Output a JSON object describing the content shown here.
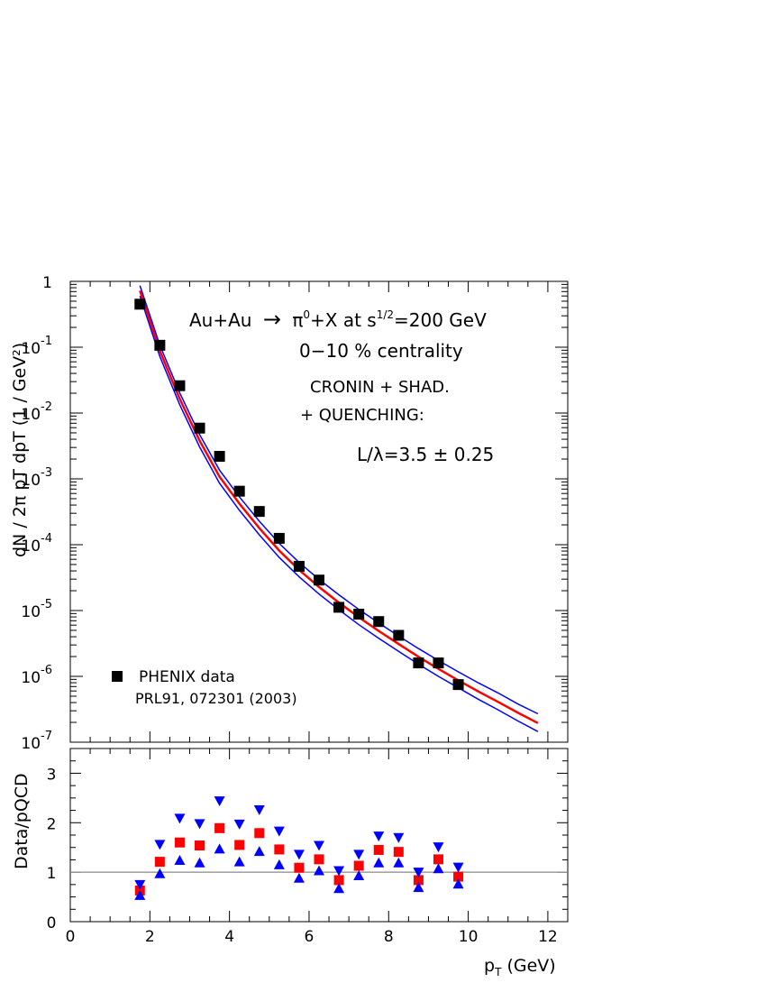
{
  "chart_data": [
    {
      "type": "scatter",
      "ylabel": "dN / 2π pT dpT (1 / GeV²)",
      "yscale": "log",
      "xlim": [
        0,
        12.5
      ],
      "ylim": [
        1e-07,
        1
      ],
      "y_tick_labels": [
        {
          "v": 1,
          "base": "1",
          "exp": ""
        },
        {
          "v": 0.1,
          "base": "10",
          "exp": "-1"
        },
        {
          "v": 0.01,
          "base": "10",
          "exp": "-2"
        },
        {
          "v": 0.001,
          "base": "10",
          "exp": "-3"
        },
        {
          "v": 0.0001,
          "base": "10",
          "exp": "-4"
        },
        {
          "v": 1e-05,
          "base": "10",
          "exp": "-5"
        },
        {
          "v": 1e-06,
          "base": "10",
          "exp": "-6"
        },
        {
          "v": 1e-07,
          "base": "10",
          "exp": "-7"
        }
      ],
      "annotations": {
        "reaction_a": "Au+Au",
        "reaction_arrow": "→",
        "reaction_b": "π",
        "reaction_b_sup": "0",
        "reaction_c": "+X at s",
        "reaction_c_sup": "1/2",
        "reaction_d": "=200 GeV",
        "centrality": "0−10 % centrality",
        "model_1": "CRONIN + SHAD.",
        "model_2": "+ QUENCHING:",
        "opacity": "L/λ=3.5 ± 0.25"
      },
      "legend": {
        "position": "bottom-left",
        "label": "PHENIX data",
        "reference": "PRL91, 072301 (2003)"
      },
      "series": [
        {
          "name": "PHENIX data",
          "marker": "square",
          "color": "#000000",
          "x": [
            1.75,
            2.25,
            2.75,
            3.25,
            3.75,
            4.25,
            4.75,
            5.25,
            5.75,
            6.25,
            6.75,
            7.25,
            7.75,
            8.25,
            8.75,
            9.25,
            9.75
          ],
          "y": [
            0.45,
            0.107,
            0.026,
            0.0059,
            0.0022,
            0.00065,
            0.00032,
            0.000125,
            4.7e-05,
            2.9e-05,
            1.12e-05,
            8.8e-06,
            6.8e-06,
            4.2e-06,
            1.6e-06,
            1.6e-06,
            7.5e-07
          ]
        },
        {
          "marker": "line",
          "color": "#ff0000",
          "x": [
            1.75,
            2.25,
            2.75,
            3.25,
            3.75,
            4.25,
            4.75,
            5.25,
            5.75,
            6.25,
            6.75,
            7.25,
            7.75,
            8.25,
            8.75,
            9.25,
            9.75,
            10.25,
            10.75,
            11.25,
            11.75
          ],
          "y": [
            0.72,
            0.088,
            0.0165,
            0.0038,
            0.00108,
            0.00042,
            0.000178,
            8.15e-05,
            4.15e-05,
            2.28e-05,
            1.32e-05,
            7.9e-06,
            4.9e-06,
            3.1e-06,
            1.98e-06,
            1.3e-06,
            8.7e-07,
            5.9e-07,
            4.1e-07,
            2.8e-07,
            1.95e-07
          ]
        },
        {
          "marker": "line",
          "color": "#0000ff",
          "x": [
            1.75,
            2.25,
            2.75,
            3.25,
            3.75,
            4.25,
            4.75,
            5.25,
            5.75,
            6.25,
            6.75,
            7.25,
            7.75,
            8.25,
            8.75,
            9.25,
            9.75,
            10.25,
            10.75,
            11.25,
            11.75
          ],
          "y": [
            0.86,
            0.107,
            0.0203,
            0.0047,
            0.00136,
            0.00053,
            0.000227,
            0.000105,
            5.37e-05,
            2.97e-05,
            1.73e-05,
            1.04e-05,
            6.5e-06,
            4.1e-06,
            2.64e-06,
            1.74e-06,
            1.17e-06,
            8e-07,
            5.6e-07,
            3.8e-07,
            2.7e-07
          ]
        },
        {
          "marker": "line",
          "color": "#0000ff",
          "x": [
            1.75,
            2.25,
            2.75,
            3.25,
            3.75,
            4.25,
            4.75,
            5.25,
            5.75,
            6.25,
            6.75,
            7.25,
            7.75,
            8.25,
            8.75,
            9.25,
            9.75,
            10.25,
            10.75,
            11.25,
            11.75
          ],
          "y": [
            0.6,
            0.072,
            0.0134,
            0.00305,
            0.00086,
            0.000333,
            0.000141,
            6.41e-05,
            3.25e-05,
            1.78e-05,
            1.03e-05,
            6.1e-06,
            3.8e-06,
            2.4e-06,
            1.53e-06,
            1e-06,
            6.7e-07,
            4.5e-07,
            3.1e-07,
            2.1e-07,
            1.45e-07
          ]
        }
      ]
    },
    {
      "type": "scatter",
      "xlabel": "p",
      "xlabel_sub": "T",
      "xlabel_unit": " (GeV)",
      "ylabel": "Data/pQCD",
      "xlim": [
        0,
        12.5
      ],
      "ylim": [
        0,
        3.5
      ],
      "x_ticks": [
        0,
        2,
        4,
        6,
        8,
        10,
        12
      ],
      "y_ticks": [
        0,
        1,
        2,
        3
      ],
      "reference_line": 1,
      "series": [
        {
          "marker": "square",
          "color": "#ff0000",
          "x": [
            1.75,
            2.25,
            2.75,
            3.25,
            3.75,
            4.25,
            4.75,
            5.25,
            5.75,
            6.25,
            6.75,
            7.25,
            7.75,
            8.25,
            8.75,
            9.25,
            9.75
          ],
          "y": [
            0.63,
            1.21,
            1.6,
            1.54,
            1.89,
            1.55,
            1.79,
            1.46,
            1.09,
            1.26,
            0.84,
            1.13,
            1.45,
            1.41,
            0.84,
            1.26,
            0.91
          ]
        },
        {
          "marker": "triangle-down",
          "color": "#0000ff",
          "x": [
            1.75,
            2.25,
            2.75,
            3.25,
            3.75,
            4.25,
            4.75,
            5.25,
            5.75,
            6.25,
            6.75,
            7.25,
            7.75,
            8.25,
            8.75,
            9.25,
            9.75
          ],
          "y": [
            0.75,
            1.56,
            2.09,
            1.98,
            2.44,
            1.97,
            2.26,
            1.83,
            1.36,
            1.54,
            1.03,
            1.36,
            1.73,
            1.7,
            1.0,
            1.51,
            1.1
          ]
        },
        {
          "marker": "triangle-up",
          "color": "#0000ff",
          "x": [
            1.75,
            2.25,
            2.75,
            3.25,
            3.75,
            4.25,
            4.75,
            5.25,
            5.75,
            6.25,
            6.75,
            7.25,
            7.75,
            8.25,
            8.75,
            9.25,
            9.75
          ],
          "y": [
            0.53,
            0.97,
            1.24,
            1.19,
            1.47,
            1.21,
            1.42,
            1.15,
            0.88,
            1.03,
            0.67,
            0.93,
            1.19,
            1.19,
            0.69,
            1.07,
            0.76
          ]
        }
      ]
    }
  ]
}
